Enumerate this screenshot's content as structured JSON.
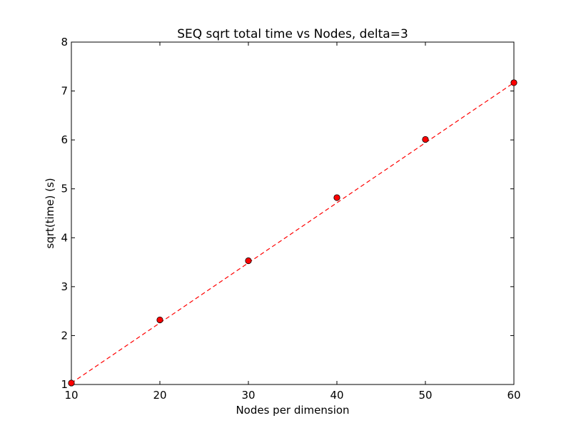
{
  "chart_data": {
    "type": "scatter",
    "title": "SEQ sqrt total time vs Nodes, delta=3",
    "xlabel": "Nodes per dimension",
    "ylabel": "sqrt(time) (s)",
    "xlim": [
      10,
      60
    ],
    "ylim": [
      1,
      8
    ],
    "xticks": [
      10,
      20,
      30,
      40,
      50,
      60
    ],
    "yticks": [
      1,
      2,
      3,
      4,
      5,
      6,
      7,
      8
    ],
    "grid": false,
    "points": {
      "x": [
        10,
        20,
        30,
        40,
        50,
        60
      ],
      "y": [
        1.03,
        2.32,
        3.53,
        4.82,
        6.01,
        7.17
      ],
      "color": "#ff0000",
      "edge_color": "#000000",
      "marker": "circle"
    },
    "fit_line": {
      "x": [
        10,
        60
      ],
      "y": [
        1.03,
        7.17
      ],
      "color": "#ff0000",
      "style": "dashed"
    }
  }
}
